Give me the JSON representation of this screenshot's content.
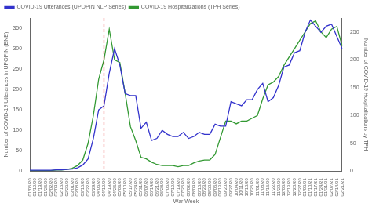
{
  "chart_data": {
    "type": "line",
    "x_label": "War Week",
    "y_label": "Number of COVID-19 Utterances in UPOPIN (ENE)",
    "y2_label": "Number of COVID-19 Hospitalizations by TPH",
    "categories": [
      "01/05/20",
      "01/12/20",
      "01/19/20",
      "01/26/20",
      "02/02/20",
      "02/09/20",
      "02/16/20",
      "02/23/20",
      "03/01/20",
      "03/08/20",
      "03/15/20",
      "03/22/20",
      "03/29/20",
      "04/05/20",
      "04/12/20",
      "04/19/20",
      "04/26/20",
      "05/03/20",
      "05/10/20",
      "05/17/20",
      "05/24/20",
      "05/31/20",
      "06/07/20",
      "06/14/20",
      "06/21/20",
      "06/28/20",
      "07/05/20",
      "07/12/20",
      "07/19/20",
      "07/26/20",
      "08/02/20",
      "08/09/20",
      "08/16/20",
      "08/23/20",
      "08/30/20",
      "09/06/20",
      "09/13/20",
      "09/20/20",
      "09/27/20",
      "10/04/20",
      "10/11/20",
      "10/18/20",
      "10/25/20",
      "11/01/20",
      "11/08/20",
      "11/15/20",
      "11/22/20",
      "11/29/20",
      "12/06/20",
      "12/13/20",
      "12/20/20",
      "12/27/20",
      "01/03/21",
      "01/10/21",
      "01/17/21",
      "01/24/21",
      "01/31/21",
      "02/07/21",
      "02/14/21",
      "02/21/21"
    ],
    "series": [
      {
        "name": "COVID-19 Utterances (UPOPIN NLP Series)",
        "color": "#3333cc",
        "axis": "y",
        "values": [
          2,
          2,
          2,
          2,
          2,
          3,
          3,
          4,
          5,
          8,
          15,
          30,
          80,
          150,
          160,
          240,
          300,
          260,
          190,
          185,
          185,
          105,
          120,
          75,
          80,
          100,
          90,
          85,
          85,
          95,
          80,
          85,
          95,
          90,
          90,
          115,
          110,
          110,
          170,
          165,
          160,
          175,
          175,
          200,
          215,
          170,
          180,
          210,
          255,
          260,
          290,
          295,
          340,
          370,
          355,
          340,
          355,
          360,
          330,
          300
        ]
      },
      {
        "name": "COVID-19 Hospitalizations (TPH Series)",
        "color": "#339933",
        "axis": "y2",
        "values": [
          1,
          1,
          1,
          1,
          1,
          2,
          2,
          3,
          5,
          10,
          20,
          50,
          100,
          165,
          200,
          255,
          200,
          195,
          140,
          80,
          55,
          25,
          22,
          16,
          12,
          10,
          10,
          10,
          8,
          10,
          10,
          15,
          18,
          20,
          20,
          30,
          60,
          90,
          90,
          85,
          90,
          90,
          95,
          100,
          130,
          155,
          160,
          170,
          190,
          205,
          220,
          235,
          250,
          265,
          270,
          250,
          240,
          255,
          260,
          225
        ]
      }
    ],
    "ylim": [
      0,
      375
    ],
    "yticks": [
      0,
      50,
      100,
      150,
      200,
      250,
      300,
      350
    ],
    "y2lim": [
      0,
      275
    ],
    "y2ticks": [
      0,
      50,
      100,
      150,
      200,
      250
    ],
    "annotations": [
      {
        "type": "vline",
        "x": "04/12/20",
        "color": "#dd0000",
        "line_style": "dashed"
      }
    ],
    "grid": false,
    "legend": "upper left"
  }
}
